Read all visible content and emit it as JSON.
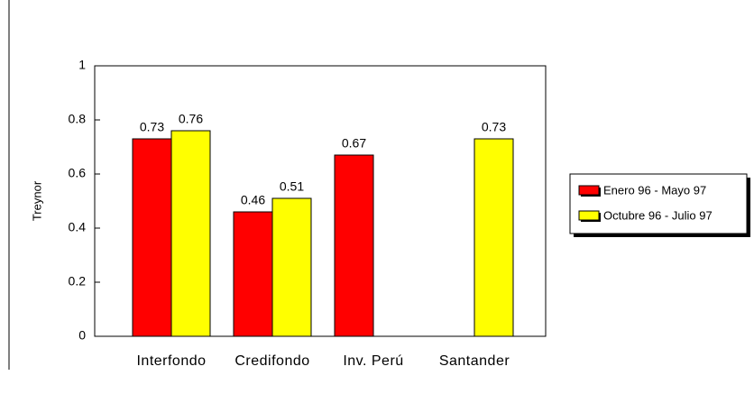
{
  "chart_data": {
    "type": "bar",
    "y_label": "Treynor",
    "categories": [
      "Interfondo",
      "Credifondo",
      "Inv. Perú",
      "Santander"
    ],
    "series": [
      {
        "name": "Enero 96 - Mayo 97",
        "color": "#ff0000",
        "values": [
          0.73,
          0.46,
          0.67,
          null
        ]
      },
      {
        "name": "Octubre 96 - Julio 97",
        "color": "#ffff00",
        "values": [
          0.76,
          0.51,
          null,
          0.73
        ]
      }
    ],
    "ylim": [
      0,
      1
    ],
    "yticks": [
      0,
      0.2,
      0.4,
      0.6,
      0.8,
      1
    ],
    "grid": false,
    "legend": "right"
  }
}
